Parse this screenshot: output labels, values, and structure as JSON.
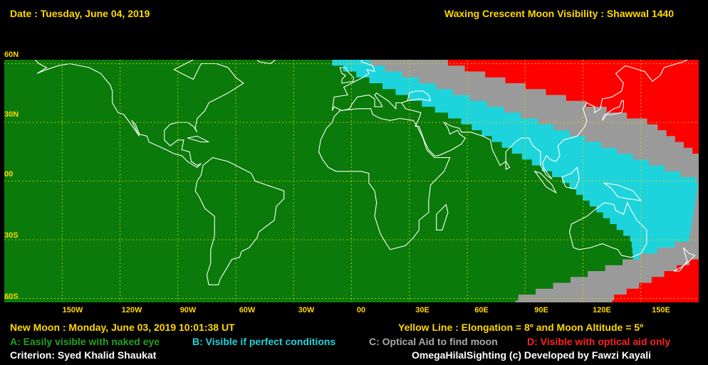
{
  "header": {
    "date": "Date : Tuesday, June 04, 2019",
    "title": "Waxing Crescent Moon Visibility : Shawwal 1440"
  },
  "lat_labels": [
    "60N",
    "30N",
    "00",
    "30S",
    "60S"
  ],
  "lon_labels": [
    "150W",
    "120W",
    "90W",
    "60W",
    "30W",
    "00",
    "30E",
    "60E",
    "90E",
    "120E",
    "150E"
  ],
  "footer": {
    "new_moon": "New Moon : Monday, June 03, 2019  10:01:38  UT",
    "yellow_line": "Yellow Line : Elongation = 8º  and Moon Altitude = 5º",
    "legend_a": "A: Easily visible with naked eye",
    "legend_b": "B: Visible if perfect conditions",
    "legend_c": "C: Optical Aid to find moon",
    "legend_d": "D: Visible with optical aid only",
    "criterion": "Criterion: Syed Khalid Shaukat",
    "credit": "OmegaHilalSighting  (c)  Developed by Fawzi Kayali"
  },
  "colors": {
    "zone_a": "#0a7a0a",
    "zone_b": "#1ed4dc",
    "zone_c": "#9a9a9a",
    "zone_d": "#ff0000",
    "grid": "#d8d800",
    "coast": "#ffffff",
    "label": "#ffd700"
  },
  "zones": {
    "note": "zone boundaries as longitude (deg) vs latitude (deg)",
    "boundary_a_b": [
      [
        60,
        -10
      ],
      [
        30,
        58
      ],
      [
        0,
        110
      ],
      [
        -30,
        145
      ],
      [
        -60,
        148
      ]
    ],
    "boundary_b_c": [
      [
        60,
        10
      ],
      [
        30,
        98
      ],
      [
        0,
        180
      ],
      [
        -30,
        175
      ],
      [
        -60,
        85
      ]
    ],
    "boundary_c_d": [
      [
        60,
        50
      ],
      [
        30,
        155
      ],
      [
        0,
        200
      ],
      [
        -30,
        200
      ],
      [
        -60,
        135
      ]
    ]
  }
}
